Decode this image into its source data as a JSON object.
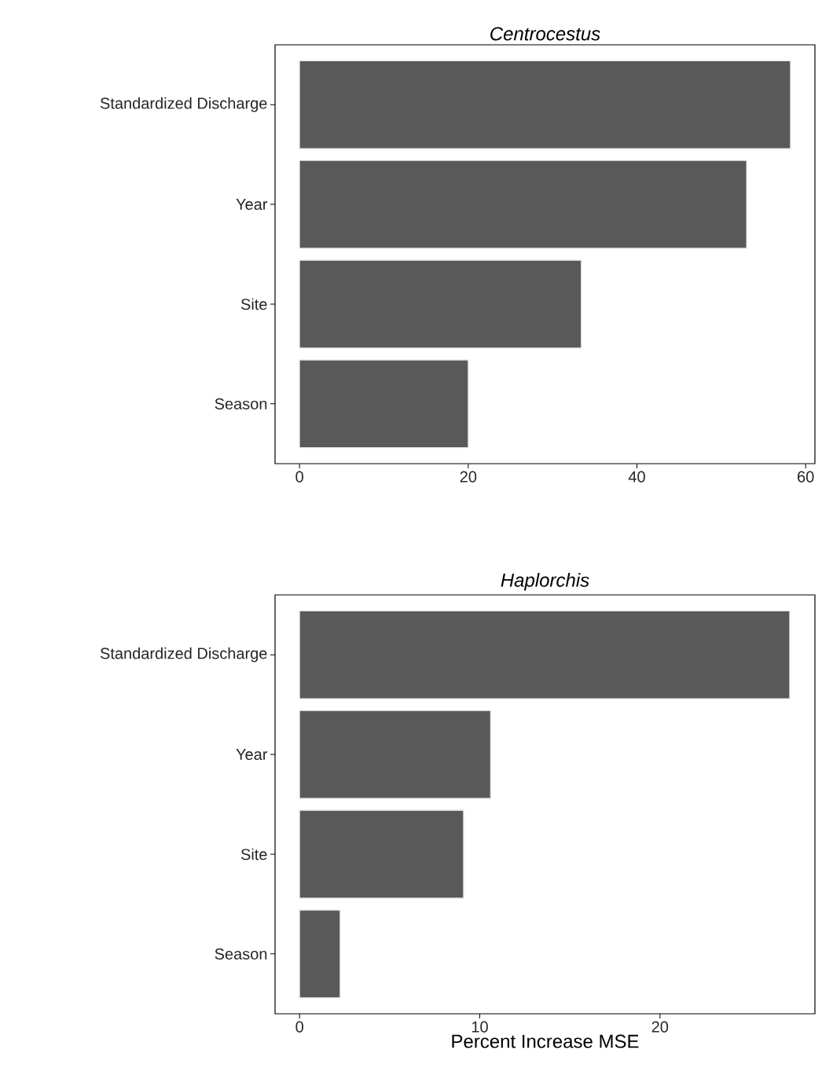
{
  "chart_data": [
    {
      "type": "bar",
      "orientation": "horizontal",
      "title": "Centrocestus",
      "categories": [
        "Standardized Discharge",
        "Year",
        "Site",
        "Season"
      ],
      "values": [
        58.2,
        53.0,
        33.4,
        20.0
      ],
      "color": "#595959",
      "xlim": [
        -2.9,
        61.1
      ],
      "xticks": [
        0,
        20,
        40,
        60
      ]
    },
    {
      "type": "bar",
      "orientation": "horizontal",
      "title": "Haplorchis",
      "xlabel": "Percent Increase MSE",
      "categories": [
        "Standardized Discharge",
        "Year",
        "Site",
        "Season"
      ],
      "values": [
        27.2,
        10.6,
        9.1,
        2.25
      ],
      "color": "#595959",
      "xlim": [
        -1.36,
        28.6
      ],
      "xticks": [
        0,
        10,
        20
      ]
    }
  ]
}
